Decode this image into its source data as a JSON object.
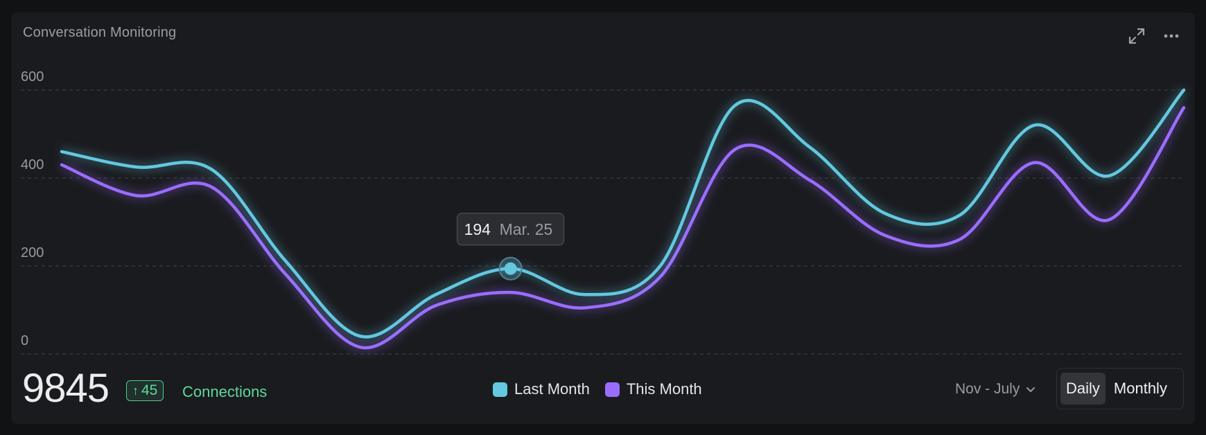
{
  "header": {
    "title": "Conversation Monitoring",
    "expand_icon": "expand-icon",
    "more_icon": "more-icon"
  },
  "chart_data": {
    "type": "line",
    "title": "Conversation Monitoring",
    "ylim": [
      0,
      600
    ],
    "y_ticks": [
      0,
      200,
      400,
      600
    ],
    "grid": true,
    "x": [
      1,
      2,
      3,
      4,
      5,
      6,
      7,
      8,
      9,
      10,
      11,
      12,
      13,
      14,
      15,
      16
    ],
    "series": [
      {
        "name": "Last Month",
        "color": "#63c8e0",
        "values": [
          460,
          425,
          420,
          210,
          40,
          135,
          194,
          135,
          200,
          565,
          470,
          320,
          315,
          520,
          405,
          600
        ]
      },
      {
        "name": "This Month",
        "color": "#9b6dff",
        "values": [
          430,
          360,
          380,
          180,
          15,
          110,
          140,
          105,
          175,
          465,
          395,
          270,
          260,
          435,
          305,
          560
        ]
      }
    ],
    "tooltip": {
      "value": "194",
      "label": "Mar. 25",
      "series": "Last Month",
      "index": 6
    }
  },
  "footer": {
    "total": "9845",
    "delta": "45",
    "delta_arrow": "↑",
    "label": "Connections",
    "range": "Nov - July",
    "toggle": {
      "daily": "Daily",
      "monthly": "Monthly",
      "active": "daily"
    }
  },
  "colors": {
    "last_month": "#63c8e0",
    "this_month": "#9b6dff",
    "positive": "#5fd99a",
    "background": "#1a1b1f"
  }
}
